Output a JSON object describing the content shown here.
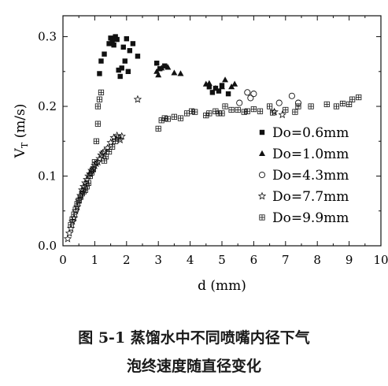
{
  "chart_data": {
    "type": "scatter",
    "xlabel": "d (mm)",
    "ylabel_main": "V",
    "ylabel_sub": "T",
    "ylabel_unit": " (m/s)",
    "xlim": [
      0,
      10
    ],
    "ylim": [
      0.0,
      0.33
    ],
    "xticks": [
      "0",
      "1",
      "2",
      "3",
      "4",
      "5",
      "6",
      "7",
      "8",
      "9",
      "10"
    ],
    "yticks": [
      "0.0",
      "0.1",
      "0.2",
      "0.3"
    ],
    "grid": false,
    "legend_position": "right",
    "series": [
      {
        "name": "Do=0.6mm",
        "marker": "square",
        "points": [
          [
            1.15,
            0.247
          ],
          [
            1.2,
            0.265
          ],
          [
            1.3,
            0.275
          ],
          [
            1.45,
            0.29
          ],
          [
            1.5,
            0.298
          ],
          [
            1.55,
            0.293
          ],
          [
            1.6,
            0.288
          ],
          [
            1.65,
            0.3
          ],
          [
            1.7,
            0.296
          ],
          [
            1.75,
            0.252
          ],
          [
            1.8,
            0.243
          ],
          [
            1.85,
            0.255
          ],
          [
            1.9,
            0.285
          ],
          [
            1.95,
            0.265
          ],
          [
            2.0,
            0.297
          ],
          [
            2.05,
            0.25
          ],
          [
            2.1,
            0.28
          ],
          [
            2.2,
            0.29
          ],
          [
            2.35,
            0.272
          ],
          [
            2.95,
            0.262
          ],
          [
            3.05,
            0.254
          ],
          [
            3.2,
            0.258
          ],
          [
            4.6,
            0.228
          ],
          [
            4.7,
            0.22
          ],
          [
            4.8,
            0.226
          ],
          [
            4.9,
            0.222
          ],
          [
            5.0,
            0.23
          ],
          [
            5.2,
            0.218
          ]
        ]
      },
      {
        "name": "Do=1.0mm",
        "marker": "triangle",
        "points": [
          [
            2.95,
            0.25
          ],
          [
            3.0,
            0.245
          ],
          [
            3.1,
            0.255
          ],
          [
            3.3,
            0.256
          ],
          [
            3.5,
            0.248
          ],
          [
            3.7,
            0.247
          ],
          [
            4.5,
            0.232
          ],
          [
            4.6,
            0.233
          ],
          [
            4.8,
            0.226
          ],
          [
            5.0,
            0.228
          ],
          [
            5.1,
            0.238
          ],
          [
            5.3,
            0.228
          ],
          [
            5.4,
            0.232
          ]
        ]
      },
      {
        "name": "Do=4.3mm",
        "marker": "circle",
        "points": [
          [
            5.55,
            0.205
          ],
          [
            5.8,
            0.22
          ],
          [
            5.9,
            0.212
          ],
          [
            6.0,
            0.218
          ],
          [
            6.8,
            0.205
          ],
          [
            7.2,
            0.215
          ],
          [
            7.4,
            0.205
          ]
        ]
      },
      {
        "name": "Do=7.7mm",
        "marker": "star",
        "points": [
          [
            0.15,
            0.01
          ],
          [
            0.2,
            0.018
          ],
          [
            0.25,
            0.025
          ],
          [
            0.3,
            0.035
          ],
          [
            0.35,
            0.04
          ],
          [
            0.4,
            0.05
          ],
          [
            0.45,
            0.056
          ],
          [
            0.5,
            0.065
          ],
          [
            0.55,
            0.072
          ],
          [
            0.6,
            0.08
          ],
          [
            0.65,
            0.085
          ],
          [
            0.7,
            0.09
          ],
          [
            0.75,
            0.095
          ],
          [
            0.8,
            0.1
          ],
          [
            0.85,
            0.103
          ],
          [
            0.9,
            0.108
          ],
          [
            0.95,
            0.11
          ],
          [
            1.0,
            0.115
          ],
          [
            1.05,
            0.118
          ],
          [
            1.1,
            0.12
          ],
          [
            1.15,
            0.125
          ],
          [
            1.2,
            0.13
          ],
          [
            1.25,
            0.133
          ],
          [
            1.3,
            0.135
          ],
          [
            1.4,
            0.14
          ],
          [
            1.5,
            0.148
          ],
          [
            1.6,
            0.155
          ],
          [
            1.7,
            0.158
          ],
          [
            1.8,
            0.152
          ],
          [
            1.85,
            0.157
          ],
          [
            2.35,
            0.21
          ],
          [
            6.65,
            0.192
          ],
          [
            6.9,
            0.188
          ]
        ]
      },
      {
        "name": "Do=9.9mm",
        "marker": "boxplus",
        "points": [
          [
            0.25,
            0.03
          ],
          [
            0.3,
            0.038
          ],
          [
            0.35,
            0.045
          ],
          [
            0.4,
            0.052
          ],
          [
            0.45,
            0.06
          ],
          [
            0.5,
            0.065
          ],
          [
            0.55,
            0.07
          ],
          [
            0.6,
            0.075
          ],
          [
            0.65,
            0.078
          ],
          [
            0.7,
            0.08
          ],
          [
            0.75,
            0.085
          ],
          [
            0.8,
            0.09
          ],
          [
            0.85,
            0.1
          ],
          [
            0.9,
            0.105
          ],
          [
            0.95,
            0.11
          ],
          [
            1.0,
            0.12
          ],
          [
            1.05,
            0.15
          ],
          [
            1.1,
            0.175
          ],
          [
            1.1,
            0.2
          ],
          [
            1.15,
            0.21
          ],
          [
            1.2,
            0.22
          ],
          [
            1.3,
            0.122
          ],
          [
            1.35,
            0.128
          ],
          [
            1.45,
            0.135
          ],
          [
            1.55,
            0.142
          ],
          [
            1.65,
            0.15
          ],
          [
            1.75,
            0.155
          ],
          [
            3.0,
            0.168
          ],
          [
            3.1,
            0.18
          ],
          [
            3.2,
            0.183
          ],
          [
            3.3,
            0.182
          ],
          [
            3.5,
            0.185
          ],
          [
            3.7,
            0.183
          ],
          [
            3.9,
            0.19
          ],
          [
            4.05,
            0.193
          ],
          [
            4.15,
            0.192
          ],
          [
            4.5,
            0.187
          ],
          [
            4.6,
            0.19
          ],
          [
            4.8,
            0.193
          ],
          [
            4.9,
            0.19
          ],
          [
            5.0,
            0.19
          ],
          [
            5.1,
            0.2
          ],
          [
            5.3,
            0.195
          ],
          [
            5.5,
            0.195
          ],
          [
            5.7,
            0.192
          ],
          [
            5.8,
            0.193
          ],
          [
            6.0,
            0.196
          ],
          [
            6.2,
            0.193
          ],
          [
            6.5,
            0.2
          ],
          [
            6.6,
            0.191
          ],
          [
            7.0,
            0.195
          ],
          [
            7.3,
            0.192
          ],
          [
            7.4,
            0.2
          ],
          [
            7.8,
            0.2
          ],
          [
            8.3,
            0.203
          ],
          [
            8.6,
            0.2
          ],
          [
            8.8,
            0.204
          ],
          [
            9.0,
            0.203
          ],
          [
            9.1,
            0.21
          ],
          [
            9.3,
            0.213
          ]
        ]
      }
    ]
  },
  "caption_line1": "图 5-1  蒸馏水中不同喷嘴内径下气",
  "caption_line2": "泡终速度随直径变化"
}
